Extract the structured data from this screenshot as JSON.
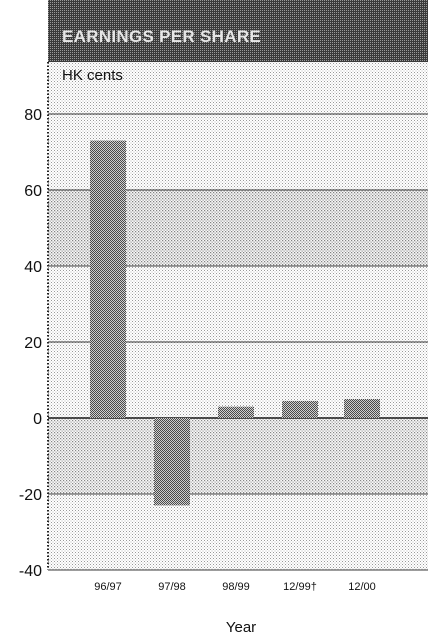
{
  "chart_data": {
    "type": "bar",
    "title": "EARNINGS PER SHARE",
    "unit_label": "HK cents",
    "xlabel": "Year",
    "ylabel": "",
    "categories": [
      "96/97",
      "97/98",
      "98/99",
      "12/99†",
      "12/00"
    ],
    "values": [
      73,
      -23,
      3,
      4.5,
      5
    ],
    "ylim": [
      -40,
      80
    ],
    "yticks": [
      -40,
      -20,
      0,
      20,
      40,
      60,
      80
    ],
    "grid": true,
    "legend": "none"
  }
}
